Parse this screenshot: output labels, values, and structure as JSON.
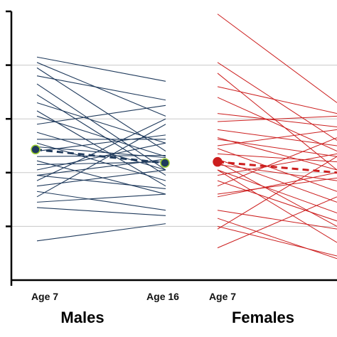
{
  "chart_data": {
    "type": "line",
    "title": "",
    "xlabel": "",
    "ylabel": "",
    "ylim": [
      0,
      5
    ],
    "grid": true,
    "x": [
      "Age 7",
      "Age 16"
    ],
    "colors": {
      "males": "#1f3a5c",
      "females": "#cc1e1e",
      "grid": "#c8c8c8",
      "axis": "#000000"
    },
    "groups": [
      {
        "label": "Males",
        "tick_labels": [
          "Age 7",
          "Age 16"
        ],
        "mean": {
          "age7": 2.43,
          "age16": 2.18
        },
        "lines": [
          [
            4.15,
            3.7
          ],
          [
            4.05,
            3.05
          ],
          [
            3.95,
            2.4
          ],
          [
            3.8,
            3.35
          ],
          [
            3.65,
            2.05
          ],
          [
            3.45,
            1.95
          ],
          [
            3.3,
            2.55
          ],
          [
            3.15,
            1.75
          ],
          [
            3.05,
            2.3
          ],
          [
            2.9,
            3.25
          ],
          [
            2.75,
            2.05
          ],
          [
            2.62,
            2.62
          ],
          [
            2.55,
            1.85
          ],
          [
            2.48,
            2.28
          ],
          [
            2.4,
            2.7
          ],
          [
            2.3,
            2.32
          ],
          [
            2.22,
            1.6
          ],
          [
            2.15,
            2.2
          ],
          [
            2.05,
            2.55
          ],
          [
            1.95,
            2.25
          ],
          [
            1.85,
            3.0
          ],
          [
            1.75,
            2.05
          ],
          [
            1.65,
            1.3
          ],
          [
            1.55,
            2.9
          ],
          [
            1.45,
            1.6
          ],
          [
            1.35,
            1.2
          ],
          [
            1.95,
            1.7
          ],
          [
            0.73,
            1.05
          ]
        ]
      },
      {
        "label": "Females",
        "tick_labels": [
          "Age 7",
          ""
        ],
        "mean": {
          "age7": 2.2,
          "age16": 2.0
        },
        "lines": [
          [
            4.95,
            3.3
          ],
          [
            4.05,
            2.6
          ],
          [
            3.6,
            3.1
          ],
          [
            3.4,
            2.4
          ],
          [
            3.1,
            2.85
          ],
          [
            2.95,
            3.05
          ],
          [
            2.8,
            2.5
          ],
          [
            2.65,
            2.05
          ],
          [
            2.5,
            2.8
          ],
          [
            2.45,
            1.65
          ],
          [
            2.35,
            2.2
          ],
          [
            2.25,
            1.45
          ],
          [
            2.15,
            1.85
          ],
          [
            2.05,
            1.25
          ],
          [
            1.95,
            2.35
          ],
          [
            1.85,
            1.1
          ],
          [
            1.6,
            1.9
          ],
          [
            1.3,
            0.95
          ],
          [
            1.15,
            0.4
          ],
          [
            0.95,
            2.3
          ],
          [
            0.6,
            1.55
          ],
          [
            2.62,
            2.3
          ],
          [
            1.75,
            2.65
          ],
          [
            3.85,
            2.05
          ],
          [
            2.05,
            0.7
          ],
          [
            1.0,
            0.45
          ],
          [
            2.2,
            1.0
          ],
          [
            1.55,
            2.0
          ]
        ]
      }
    ]
  }
}
